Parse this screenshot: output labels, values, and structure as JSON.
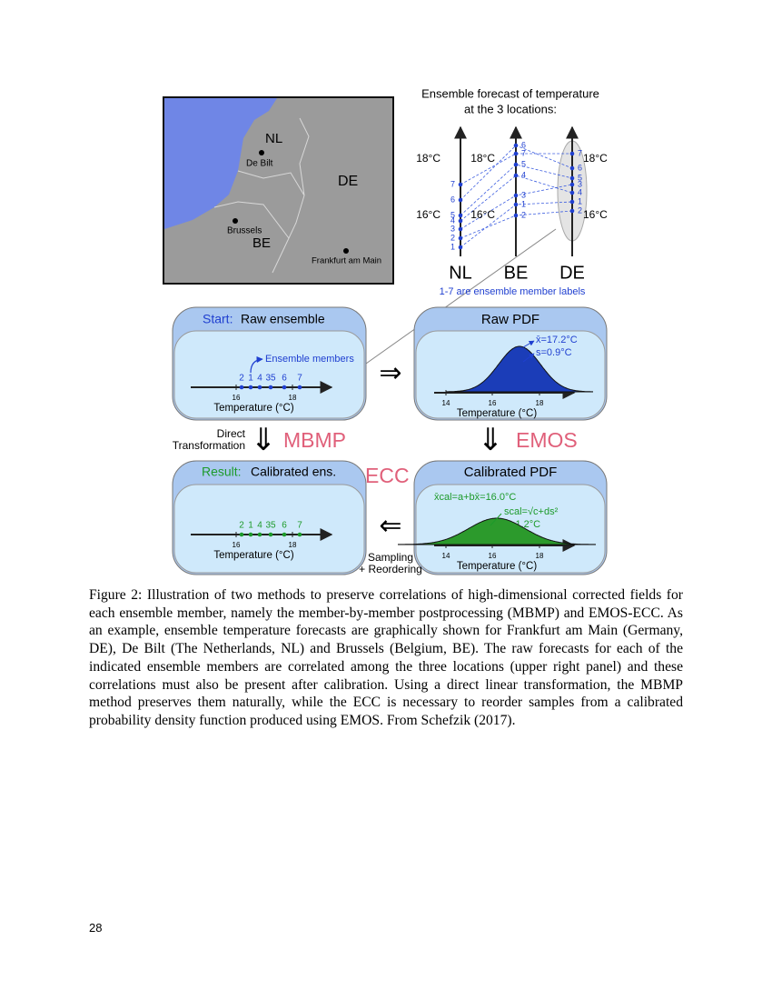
{
  "map": {
    "labels": [
      "NL",
      "De Bilt",
      "DE",
      "Brussels",
      "BE",
      "Frankfurt am Main"
    ]
  },
  "ensemble": {
    "title": [
      "Ensemble forecast of temperature",
      "at the 3 locations:"
    ],
    "locations": [
      {
        "name": "NL",
        "high": "18°C",
        "low": "16°C",
        "members": [
          "7",
          "6",
          "5",
          "4",
          "3",
          "2",
          "1"
        ]
      },
      {
        "name": "BE",
        "high": "18°C",
        "low": "16°C",
        "members": [
          "6",
          "7",
          "5",
          "4",
          "3",
          "1",
          "2"
        ]
      },
      {
        "name": "DE",
        "high": "18°C",
        "low": "16°C",
        "members": [
          "7",
          "6",
          "5",
          "3",
          "4",
          "1",
          "2"
        ]
      }
    ],
    "note": "1-7 are ensemble member labels"
  },
  "raw_ensemble": {
    "prefix": "Start:",
    "title": "Raw ensemble",
    "annotation": "Ensemble members",
    "members": [
      "2",
      "1",
      "4",
      "35",
      "6",
      "7"
    ],
    "ticks": [
      "16",
      "18"
    ],
    "xlabel": "Temperature (°C)"
  },
  "raw_pdf": {
    "title": "Raw PDF",
    "mean": "x̄=17.2°C",
    "sd": "s=0.9°C",
    "ticks": [
      "14",
      "16",
      "18"
    ],
    "xlabel": "Temperature (°C)"
  },
  "result": {
    "prefix": "Result:",
    "title": "Calibrated ens.",
    "members": [
      "2",
      "1",
      "4",
      "35",
      "6",
      "7"
    ],
    "ticks": [
      "16",
      "18"
    ],
    "xlabel": "Temperature (°C)"
  },
  "calibrated_pdf": {
    "title": "Calibrated PDF",
    "mean": "x̄cal=a+bx̄=16.0°C",
    "sd": "scal=√c+ds²",
    "sd_value": "= 1.2°C",
    "ticks": [
      "14",
      "16",
      "18"
    ],
    "xlabel": "Temperature (°C)"
  },
  "arrows": {
    "direct": [
      "Direct",
      "Transformation"
    ],
    "mbmp": "MBMP",
    "emos": "EMOS",
    "ecc": "ECC",
    "sampling": [
      "Sampling",
      "+ Reordering"
    ]
  },
  "caption": "Figure 2: Illustration of two methods to preserve correlations of high-dimensional corrected fields for each ensemble member, namely the member-by-member postprocessing (MBMP) and EMOS-ECC. As an example, ensemble temperature forecasts are graphically shown for Frankfurt am Main (Germany, DE), De Bilt (The Netherlands, NL) and Brussels (Belgium, BE). The raw forecasts for each of the indicated ensemble members are correlated among the three locations (upper right panel) and these correlations must also be present after calibration. Using a direct linear transformation, the MBMP method preserves them naturally, while the ECC is necessary to reorder samples from a calibrated probability density function produced using EMOS.  From Schefzik (2017).",
  "page_number": "28"
}
